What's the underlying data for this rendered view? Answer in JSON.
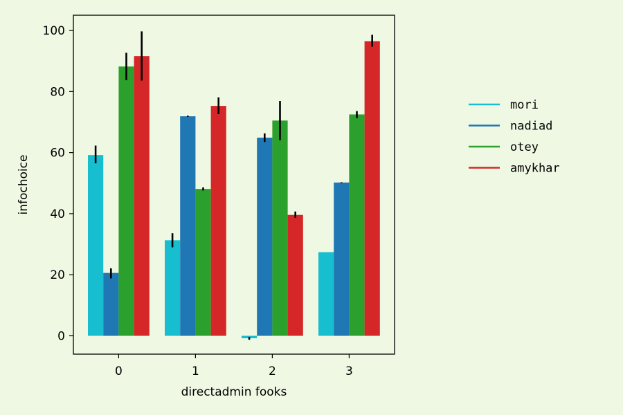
{
  "chart_data": {
    "type": "bar",
    "title": "",
    "xlabel": "directadmin fooks",
    "ylabel": "infochoice",
    "categories": [
      "0",
      "1",
      "2",
      "3"
    ],
    "ylim": [
      -6,
      105
    ],
    "yticks": [
      0,
      20,
      40,
      60,
      80,
      100
    ],
    "grid": false,
    "legend_position": "right",
    "series": [
      {
        "name": "mori",
        "color": "#17becf",
        "values": [
          59.2,
          31.3,
          -0.8,
          27.4
        ],
        "errors": [
          [
            56.5,
            62.3
          ],
          [
            29.0,
            33.6
          ],
          [
            -1.3,
            -0.4
          ],
          [
            27.4,
            27.4
          ]
        ]
      },
      {
        "name": "nadiad",
        "color": "#1f77b4",
        "values": [
          20.6,
          71.9,
          64.9,
          50.2
        ],
        "errors": [
          [
            18.8,
            22.1
          ],
          [
            71.7,
            72.1
          ],
          [
            63.5,
            66.3
          ],
          [
            50.0,
            50.3
          ]
        ]
      },
      {
        "name": "otey",
        "color": "#2ca02c",
        "values": [
          88.2,
          48.1,
          70.5,
          72.5
        ],
        "errors": [
          [
            83.7,
            92.7
          ],
          [
            47.6,
            48.6
          ],
          [
            64.1,
            76.9
          ],
          [
            71.3,
            73.6
          ]
        ]
      },
      {
        "name": "amykhar",
        "color": "#d62728",
        "values": [
          91.6,
          75.3,
          39.6,
          96.5
        ],
        "errors": [
          [
            83.6,
            99.7
          ],
          [
            72.6,
            78.1
          ],
          [
            38.6,
            40.7
          ],
          [
            94.7,
            98.6
          ]
        ]
      }
    ]
  }
}
